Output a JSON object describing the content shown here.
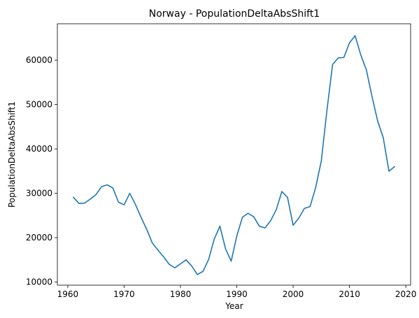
{
  "chart_data": {
    "type": "line",
    "title": "Norway - PopulationDeltaAbsShift1",
    "xlabel": "Year",
    "ylabel": "PopulationDeltaAbsShift1",
    "xlim": [
      1958.15,
      2020.85
    ],
    "ylim": [
      9300,
      68200
    ],
    "x_ticks": [
      1960,
      1970,
      1980,
      1990,
      2000,
      2010,
      2020
    ],
    "y_ticks": [
      10000,
      20000,
      30000,
      40000,
      50000,
      60000
    ],
    "grid": false,
    "series": [
      {
        "color": "#1f77b4",
        "x": [
          1961,
          1962,
          1963,
          1964,
          1965,
          1966,
          1967,
          1968,
          1969,
          1970,
          1971,
          1972,
          1973,
          1974,
          1975,
          1976,
          1977,
          1978,
          1979,
          1980,
          1981,
          1982,
          1983,
          1984,
          1985,
          1986,
          1987,
          1988,
          1989,
          1990,
          1991,
          1992,
          1993,
          1994,
          1995,
          1996,
          1997,
          1998,
          1999,
          2000,
          2001,
          2002,
          2003,
          2004,
          2005,
          2006,
          2007,
          2008,
          2009,
          2010,
          2011,
          2012,
          2013,
          2014,
          2015,
          2016,
          2017,
          2018
        ],
        "values": [
          29100,
          27700,
          27800,
          28700,
          29700,
          31500,
          31900,
          31200,
          28000,
          27400,
          30000,
          27500,
          24600,
          21900,
          18800,
          17200,
          15700,
          14000,
          13200,
          14100,
          15000,
          13600,
          11700,
          12400,
          15100,
          19700,
          22600,
          17500,
          14700,
          20400,
          24600,
          25500,
          24700,
          22600,
          22200,
          23800,
          26300,
          30400,
          29100,
          22800,
          24400,
          26600,
          27000,
          31300,
          37300,
          48700,
          59000,
          60500,
          60600,
          63900,
          65500,
          61200,
          57800,
          51800,
          46300,
          42500,
          35000,
          36000
        ]
      }
    ]
  }
}
